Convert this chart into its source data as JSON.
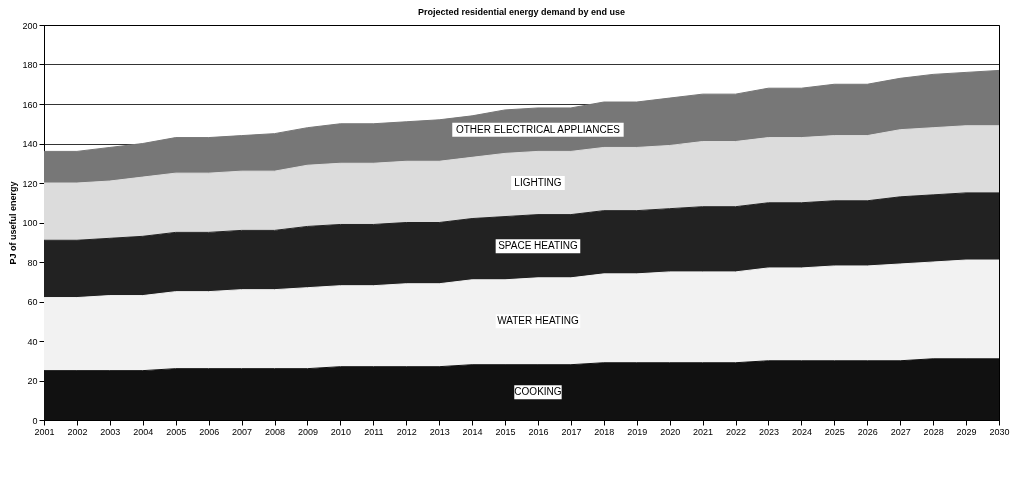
{
  "chart_data": {
    "type": "area",
    "stacked": true,
    "title": "Projected residential energy demand by end use",
    "ylabel": "PJ of useful energy",
    "categories": [
      "2001",
      "2002",
      "2003",
      "2004",
      "2005",
      "2006",
      "2007",
      "2008",
      "2009",
      "2010",
      "2011",
      "2012",
      "2013",
      "2014",
      "2015",
      "2016",
      "2017",
      "2018",
      "2019",
      "2020",
      "2021",
      "2022",
      "2023",
      "2024",
      "2025",
      "2026",
      "2027",
      "2028",
      "2029",
      "2030"
    ],
    "series": [
      {
        "name": "COOKING",
        "color": "#111111",
        "values": [
          25,
          25,
          25,
          25,
          26,
          26,
          26,
          26,
          26,
          27,
          27,
          27,
          27,
          28,
          28,
          28,
          28,
          29,
          29,
          29,
          29,
          29,
          30,
          30,
          30,
          30,
          30,
          31,
          31,
          31
        ]
      },
      {
        "name": "WATER HEATING",
        "color": "#f2f2f2",
        "values": [
          37,
          37,
          38,
          38,
          39,
          39,
          40,
          40,
          41,
          41,
          41,
          42,
          42,
          43,
          43,
          44,
          44,
          45,
          45,
          46,
          46,
          46,
          47,
          47,
          48,
          48,
          49,
          49,
          50,
          50
        ]
      },
      {
        "name": "SPACE HEATING",
        "color": "#222222",
        "values": [
          29,
          29,
          29,
          30,
          30,
          30,
          30,
          30,
          31,
          31,
          31,
          31,
          31,
          31,
          32,
          32,
          32,
          32,
          32,
          32,
          33,
          33,
          33,
          33,
          33,
          33,
          34,
          34,
          34,
          34
        ]
      },
      {
        "name": "LIGHTING",
        "color": "#dcdcdc",
        "values": [
          29,
          29,
          29,
          30,
          30,
          30,
          30,
          30,
          31,
          31,
          31,
          31,
          31,
          31,
          32,
          32,
          32,
          32,
          32,
          32,
          33,
          33,
          33,
          33,
          33,
          33,
          34,
          34,
          34,
          34
        ]
      },
      {
        "name": "OTHER ELECTRICAL APPLIANCES",
        "color": "#777777",
        "values": [
          16,
          16,
          17,
          17,
          18,
          18,
          18,
          19,
          19,
          20,
          20,
          20,
          21,
          21,
          22,
          22,
          22,
          23,
          23,
          24,
          24,
          24,
          25,
          25,
          26,
          26,
          26,
          27,
          27,
          28
        ]
      }
    ],
    "ylim": [
      0,
      200
    ],
    "yticks": [
      0,
      20,
      40,
      60,
      80,
      100,
      120,
      140,
      160,
      180,
      200
    ],
    "grid": "y",
    "legend": false
  }
}
